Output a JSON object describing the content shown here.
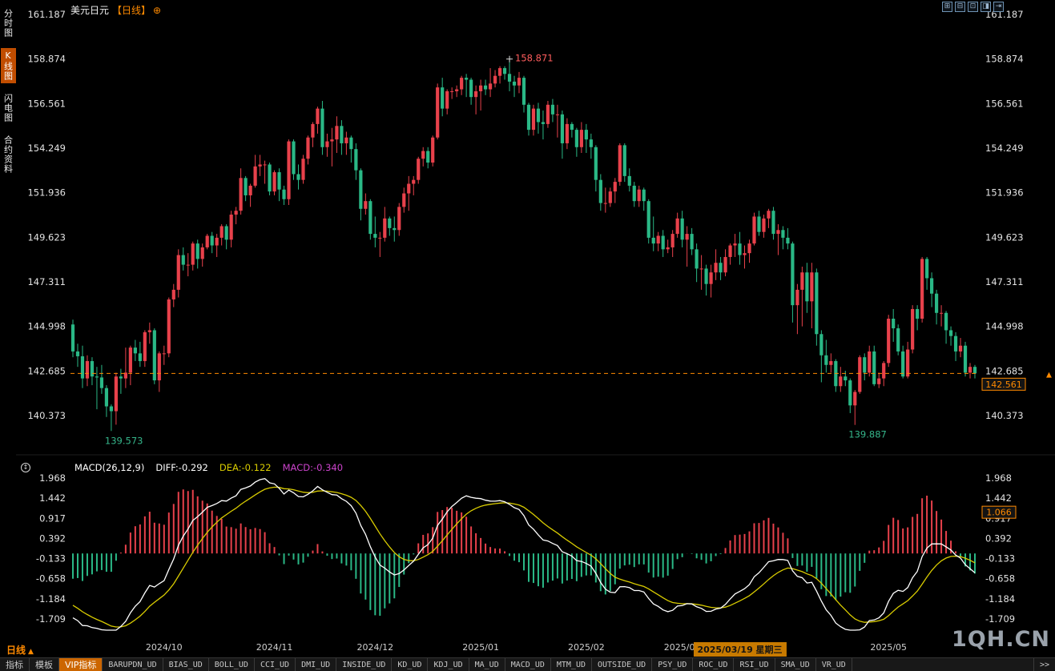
{
  "sidebar": {
    "items": [
      {
        "label": "分时图",
        "name": "time-chart",
        "active": false
      },
      {
        "label": "K线图",
        "name": "kline-chart",
        "active": true
      },
      {
        "label": "闪电图",
        "name": "tick-chart",
        "active": false
      },
      {
        "label": "合约资料",
        "name": "contract-info",
        "active": false
      }
    ]
  },
  "header": {
    "symbol": "美元日元",
    "period": "【日线】",
    "plus_icon": "⊕",
    "window_icons": [
      {
        "glyph": "⊞",
        "name": "grid-layout-icon"
      },
      {
        "glyph": "⊟",
        "name": "single-layout-icon"
      },
      {
        "glyph": "⊡",
        "name": "split-layout-icon"
      },
      {
        "glyph": "◨",
        "name": "right-panel-icon"
      },
      {
        "glyph": "⇥",
        "name": "collapse-right-icon"
      }
    ]
  },
  "macd_panel": {
    "label": "MACD(26,12,9)",
    "diff_label": "DIFF:-0.292",
    "dea_label": "DEA:-0.122",
    "macd_label": "MACD:-0.340"
  },
  "x_axis": {
    "period_label": "日线",
    "period_arrow": "▲"
  },
  "toolbar": {
    "tabs": [
      "指标",
      "模板",
      "VIP指标"
    ],
    "buttons": [
      "BARUPDN_UD",
      "BIAS_UD",
      "BOLL_UD",
      "CCI_UD",
      "DMI_UD",
      "INSIDE_UD",
      "KD_UD",
      "KDJ_UD",
      "MA_UD",
      "MACD_UD",
      "MTM_UD",
      "OUTSIDE_UD",
      "PSY_UD",
      "ROC_UD",
      "RSI_UD",
      "SMA_UD",
      "VR_UD"
    ],
    "more": ">>"
  },
  "watermark": "1QH.CN",
  "colors": {
    "up": "#e8414b",
    "down": "#2ab886",
    "accent": "#ff8a00",
    "diff_line": "#ffffff",
    "dea_line": "#d9cc00",
    "macd_value": "#cc44cc",
    "annotation_low": "#35b58a",
    "annotation_high": "#ff5d5d",
    "axis_text": "#e2e2e2"
  },
  "chart_data": {
    "type": "candlestick",
    "symbol": "美元日元",
    "period": "日线",
    "y_axis_ticks": [
      "161.187",
      "158.874",
      "156.561",
      "154.249",
      "151.936",
      "149.623",
      "147.311",
      "144.998",
      "142.685",
      "140.373"
    ],
    "last_price": "142.561",
    "annotations": {
      "high": {
        "index": 91,
        "label": "158.871"
      },
      "low_left": {
        "index": 8,
        "label": "139.573"
      },
      "low_right": {
        "index": 163,
        "label": "139.887"
      }
    },
    "x_ticks": [
      {
        "index": 19,
        "label": "2024/10"
      },
      {
        "index": 42,
        "label": "2024/11"
      },
      {
        "index": 63,
        "label": "2024/12"
      },
      {
        "index": 85,
        "label": "2025/01"
      },
      {
        "index": 107,
        "label": "2025/02"
      },
      {
        "index": 127,
        "label": "2025/03"
      },
      {
        "index": 139,
        "label": "2025/03/19 星期三",
        "highlight": true
      },
      {
        "index": 170,
        "label": "2025/05"
      }
    ],
    "macd": {
      "params": [
        26,
        12,
        9
      ],
      "y_axis_ticks": [
        "1.968",
        "1.442",
        "0.917",
        "0.392",
        "-0.133",
        "-0.658",
        "-1.184",
        "-1.709"
      ],
      "crosshair_value": "1.066",
      "diff": -0.292,
      "dea": -0.122,
      "macd": -0.34
    },
    "indicator_warmup_closes": [
      151.0,
      150.4,
      149.8,
      149.1,
      148.4,
      147.8,
      147.1,
      146.5,
      146.0,
      145.6,
      145.2,
      144.9,
      144.7,
      144.9,
      145.2
    ],
    "candles": [
      [
        145.1,
        145.35,
        143.4,
        143.7
      ],
      [
        143.7,
        144.1,
        142.9,
        143.45
      ],
      [
        143.45,
        144.0,
        141.8,
        142.3
      ],
      [
        142.3,
        143.5,
        141.9,
        143.2
      ],
      [
        143.2,
        143.4,
        141.95,
        142.4
      ],
      [
        142.4,
        142.9,
        140.7,
        142.35
      ],
      [
        142.35,
        143.0,
        141.5,
        141.8
      ],
      [
        141.8,
        141.95,
        140.3,
        140.85
      ],
      [
        140.85,
        140.95,
        139.573,
        140.6
      ],
      [
        140.6,
        142.6,
        139.9,
        142.4
      ],
      [
        142.4,
        142.8,
        141.5,
        142.3
      ],
      [
        142.3,
        143.9,
        141.8,
        142.6
      ],
      [
        142.6,
        144.0,
        141.95,
        143.9
      ],
      [
        143.9,
        144.3,
        143.2,
        143.6
      ],
      [
        143.6,
        144.2,
        142.9,
        143.2
      ],
      [
        143.2,
        144.8,
        142.9,
        144.7
      ],
      [
        144.7,
        145.2,
        144.1,
        144.8
      ],
      [
        144.8,
        144.9,
        142.0,
        142.2
      ],
      [
        142.2,
        143.7,
        141.6,
        143.6
      ],
      [
        143.6,
        144.0,
        143.0,
        143.6
      ],
      [
        143.6,
        146.5,
        143.4,
        146.4
      ],
      [
        146.4,
        147.2,
        146.0,
        146.9
      ],
      [
        146.9,
        149.0,
        146.5,
        148.7
      ],
      [
        148.7,
        149.1,
        147.9,
        148.2
      ],
      [
        148.2,
        148.8,
        147.6,
        148.2
      ],
      [
        148.2,
        149.4,
        147.9,
        149.3
      ],
      [
        149.3,
        149.5,
        148.0,
        148.5
      ],
      [
        148.5,
        149.3,
        148.1,
        149.1
      ],
      [
        149.1,
        149.8,
        149.0,
        149.7
      ],
      [
        149.7,
        149.9,
        148.8,
        149.2
      ],
      [
        149.2,
        149.8,
        148.6,
        149.6
      ],
      [
        149.6,
        150.3,
        149.2,
        150.2
      ],
      [
        150.2,
        150.3,
        149.0,
        149.5
      ],
      [
        149.5,
        151.0,
        149.1,
        150.8
      ],
      [
        150.8,
        151.2,
        150.3,
        151.0
      ],
      [
        151.0,
        153.2,
        150.8,
        152.7
      ],
      [
        152.7,
        152.8,
        151.5,
        151.8
      ],
      [
        151.8,
        152.4,
        151.2,
        152.3
      ],
      [
        152.3,
        153.9,
        152.2,
        153.3
      ],
      [
        153.3,
        153.9,
        152.8,
        153.4
      ],
      [
        153.4,
        153.6,
        152.4,
        153.4
      ],
      [
        153.4,
        153.5,
        151.8,
        152.0
      ],
      [
        152.0,
        153.1,
        151.8,
        153.0
      ],
      [
        153.0,
        153.2,
        151.5,
        152.1
      ],
      [
        152.1,
        152.3,
        151.3,
        151.6
      ],
      [
        151.6,
        154.7,
        151.3,
        154.6
      ],
      [
        154.6,
        154.7,
        152.6,
        152.9
      ],
      [
        152.9,
        153.4,
        152.1,
        152.6
      ],
      [
        152.6,
        153.9,
        152.4,
        153.7
      ],
      [
        153.7,
        154.9,
        153.4,
        154.8
      ],
      [
        154.8,
        155.6,
        154.3,
        155.5
      ],
      [
        155.5,
        156.4,
        155.0,
        156.3
      ],
      [
        156.3,
        156.7,
        153.9,
        154.3
      ],
      [
        154.3,
        155.0,
        153.8,
        154.6
      ],
      [
        154.6,
        155.3,
        153.3,
        154.7
      ],
      [
        154.7,
        155.9,
        154.0,
        155.4
      ],
      [
        155.4,
        155.7,
        153.9,
        154.5
      ],
      [
        154.5,
        155.1,
        153.9,
        154.8
      ],
      [
        154.8,
        154.9,
        153.5,
        154.2
      ],
      [
        154.2,
        154.5,
        152.6,
        153.1
      ],
      [
        153.1,
        153.2,
        150.5,
        151.1
      ],
      [
        151.1,
        151.9,
        150.8,
        151.5
      ],
      [
        151.5,
        151.6,
        149.5,
        149.8
      ],
      [
        149.8,
        150.7,
        149.1,
        149.6
      ],
      [
        149.6,
        149.9,
        148.6,
        149.6
      ],
      [
        149.6,
        151.2,
        149.4,
        150.6
      ],
      [
        150.6,
        150.7,
        149.7,
        150.1
      ],
      [
        150.1,
        150.7,
        149.4,
        150.0
      ],
      [
        150.0,
        151.4,
        149.7,
        151.2
      ],
      [
        151.2,
        152.2,
        150.9,
        151.9
      ],
      [
        151.9,
        152.8,
        151.0,
        152.4
      ],
      [
        152.4,
        152.8,
        151.8,
        152.6
      ],
      [
        152.6,
        153.8,
        152.4,
        153.7
      ],
      [
        153.7,
        154.3,
        153.3,
        154.1
      ],
      [
        154.1,
        154.3,
        153.2,
        153.5
      ],
      [
        153.5,
        154.9,
        153.3,
        154.8
      ],
      [
        154.8,
        157.6,
        154.7,
        157.4
      ],
      [
        157.4,
        157.9,
        155.9,
        156.3
      ],
      [
        156.3,
        157.3,
        156.0,
        157.2
      ],
      [
        157.2,
        157.4,
        156.8,
        157.2
      ],
      [
        157.2,
        157.5,
        156.9,
        157.3
      ],
      [
        157.3,
        158.0,
        157.0,
        157.9
      ],
      [
        157.9,
        158.1,
        156.9,
        157.8
      ],
      [
        157.8,
        157.9,
        156.5,
        156.9
      ],
      [
        156.9,
        157.5,
        156.0,
        157.2
      ],
      [
        157.2,
        157.8,
        156.2,
        157.5
      ],
      [
        157.5,
        157.8,
        157.0,
        157.3
      ],
      [
        157.3,
        158.4,
        156.9,
        157.6
      ],
      [
        157.6,
        158.3,
        157.4,
        158.0
      ],
      [
        158.0,
        158.5,
        157.6,
        158.4
      ],
      [
        158.4,
        158.5,
        157.8,
        158.1
      ],
      [
        158.1,
        158.871,
        157.2,
        157.7
      ],
      [
        157.7,
        158.0,
        156.9,
        157.5
      ],
      [
        157.5,
        158.2,
        157.1,
        157.9
      ],
      [
        157.9,
        158.0,
        156.1,
        156.5
      ],
      [
        156.5,
        156.6,
        154.9,
        155.2
      ],
      [
        155.2,
        156.5,
        154.9,
        156.3
      ],
      [
        156.3,
        156.6,
        155.0,
        155.6
      ],
      [
        155.6,
        156.2,
        154.7,
        155.5
      ],
      [
        155.5,
        156.7,
        155.3,
        156.5
      ],
      [
        156.5,
        156.8,
        155.6,
        156.0
      ],
      [
        156.0,
        156.5,
        154.8,
        156.0
      ],
      [
        156.0,
        156.2,
        153.7,
        154.5
      ],
      [
        154.5,
        155.8,
        154.2,
        155.5
      ],
      [
        155.5,
        155.6,
        154.8,
        155.2
      ],
      [
        155.2,
        155.3,
        153.8,
        154.3
      ],
      [
        154.3,
        155.6,
        154.0,
        155.2
      ],
      [
        155.2,
        155.5,
        154.0,
        154.7
      ],
      [
        154.7,
        155.0,
        153.7,
        154.3
      ],
      [
        154.3,
        154.4,
        152.0,
        152.6
      ],
      [
        152.6,
        152.9,
        151.0,
        151.4
      ],
      [
        151.4,
        152.2,
        150.9,
        151.4
      ],
      [
        151.4,
        152.2,
        151.2,
        152.0
      ],
      [
        152.0,
        152.7,
        151.4,
        152.5
      ],
      [
        152.5,
        154.5,
        152.3,
        154.4
      ],
      [
        154.4,
        154.5,
        152.5,
        152.8
      ],
      [
        152.8,
        153.2,
        152.0,
        152.3
      ],
      [
        152.3,
        152.5,
        151.2,
        151.5
      ],
      [
        151.5,
        152.3,
        151.2,
        152.1
      ],
      [
        152.1,
        152.2,
        151.0,
        151.5
      ],
      [
        151.5,
        151.6,
        149.3,
        149.6
      ],
      [
        149.6,
        150.7,
        148.9,
        149.3
      ],
      [
        149.3,
        149.9,
        148.9,
        149.7
      ],
      [
        149.7,
        150.0,
        148.6,
        149.0
      ],
      [
        149.0,
        149.5,
        148.8,
        149.1
      ],
      [
        149.1,
        150.0,
        148.6,
        149.8
      ],
      [
        149.8,
        150.9,
        149.6,
        150.6
      ],
      [
        150.6,
        151.0,
        149.1,
        149.5
      ],
      [
        149.5,
        150.2,
        148.1,
        149.8
      ],
      [
        149.8,
        150.1,
        148.7,
        149.0
      ],
      [
        149.0,
        149.3,
        147.3,
        148.0
      ],
      [
        148.0,
        148.7,
        146.9,
        148.0
      ],
      [
        148.0,
        148.2,
        146.6,
        147.2
      ],
      [
        147.2,
        148.2,
        146.5,
        147.8
      ],
      [
        147.8,
        149.0,
        147.4,
        148.3
      ],
      [
        148.3,
        148.6,
        147.4,
        147.8
      ],
      [
        147.8,
        149.0,
        147.6,
        148.6
      ],
      [
        148.6,
        149.3,
        148.2,
        149.2
      ],
      [
        149.2,
        149.8,
        148.6,
        149.3
      ],
      [
        149.3,
        149.9,
        148.2,
        148.7
      ],
      [
        148.7,
        149.2,
        148.0,
        148.8
      ],
      [
        148.8,
        149.5,
        148.3,
        149.3
      ],
      [
        149.3,
        150.9,
        149.2,
        150.7
      ],
      [
        150.7,
        151.0,
        149.7,
        149.9
      ],
      [
        149.9,
        150.8,
        149.6,
        150.6
      ],
      [
        150.6,
        151.1,
        150.1,
        151.0
      ],
      [
        151.0,
        151.2,
        149.5,
        149.8
      ],
      [
        149.8,
        150.3,
        148.7,
        150.0
      ],
      [
        150.0,
        150.2,
        149.0,
        149.6
      ],
      [
        149.6,
        150.1,
        149.0,
        149.3
      ],
      [
        149.3,
        149.4,
        145.2,
        146.1
      ],
      [
        146.1,
        147.2,
        144.6,
        146.9
      ],
      [
        146.9,
        148.1,
        145.0,
        147.8
      ],
      [
        147.8,
        148.3,
        145.7,
        146.3
      ],
      [
        146.3,
        148.3,
        144.9,
        147.8
      ],
      [
        147.8,
        148.0,
        144.0,
        144.6
      ],
      [
        144.6,
        144.8,
        142.1,
        143.5
      ],
      [
        143.5,
        144.3,
        142.6,
        143.0
      ],
      [
        143.0,
        143.6,
        142.6,
        143.2
      ],
      [
        143.2,
        143.3,
        141.6,
        141.9
      ],
      [
        141.9,
        142.9,
        141.6,
        142.4
      ],
      [
        142.4,
        142.7,
        141.9,
        142.2
      ],
      [
        142.2,
        142.3,
        140.5,
        140.9
      ],
      [
        140.9,
        141.7,
        139.887,
        141.6
      ],
      [
        141.6,
        143.5,
        141.5,
        143.4
      ],
      [
        143.4,
        143.6,
        142.2,
        142.6
      ],
      [
        142.6,
        144.0,
        142.4,
        143.7
      ],
      [
        143.7,
        144.0,
        141.9,
        142.0
      ],
      [
        142.0,
        142.6,
        141.8,
        142.3
      ],
      [
        142.3,
        143.2,
        141.9,
        143.1
      ],
      [
        143.1,
        145.6,
        142.9,
        145.4
      ],
      [
        145.4,
        145.9,
        144.2,
        144.9
      ],
      [
        144.9,
        145.1,
        143.5,
        143.7
      ],
      [
        143.7,
        144.0,
        142.3,
        142.4
      ],
      [
        142.4,
        144.2,
        142.3,
        143.8
      ],
      [
        143.8,
        146.1,
        143.6,
        145.9
      ],
      [
        145.9,
        146.1,
        144.8,
        145.4
      ],
      [
        145.4,
        148.6,
        145.2,
        148.5
      ],
      [
        148.5,
        148.6,
        146.9,
        147.5
      ],
      [
        147.5,
        147.8,
        146.0,
        146.7
      ],
      [
        146.7,
        146.9,
        145.1,
        145.7
      ],
      [
        145.7,
        146.1,
        145.0,
        145.7
      ],
      [
        145.7,
        145.8,
        144.1,
        144.8
      ],
      [
        144.8,
        145.0,
        144.0,
        144.5
      ],
      [
        144.5,
        144.7,
        143.2,
        143.7
      ],
      [
        143.7,
        144.4,
        143.4,
        144.0
      ],
      [
        144.0,
        144.2,
        142.4,
        142.6
      ],
      [
        142.6,
        143.1,
        142.3,
        142.9
      ],
      [
        142.9,
        143.0,
        142.3,
        142.561
      ]
    ]
  }
}
